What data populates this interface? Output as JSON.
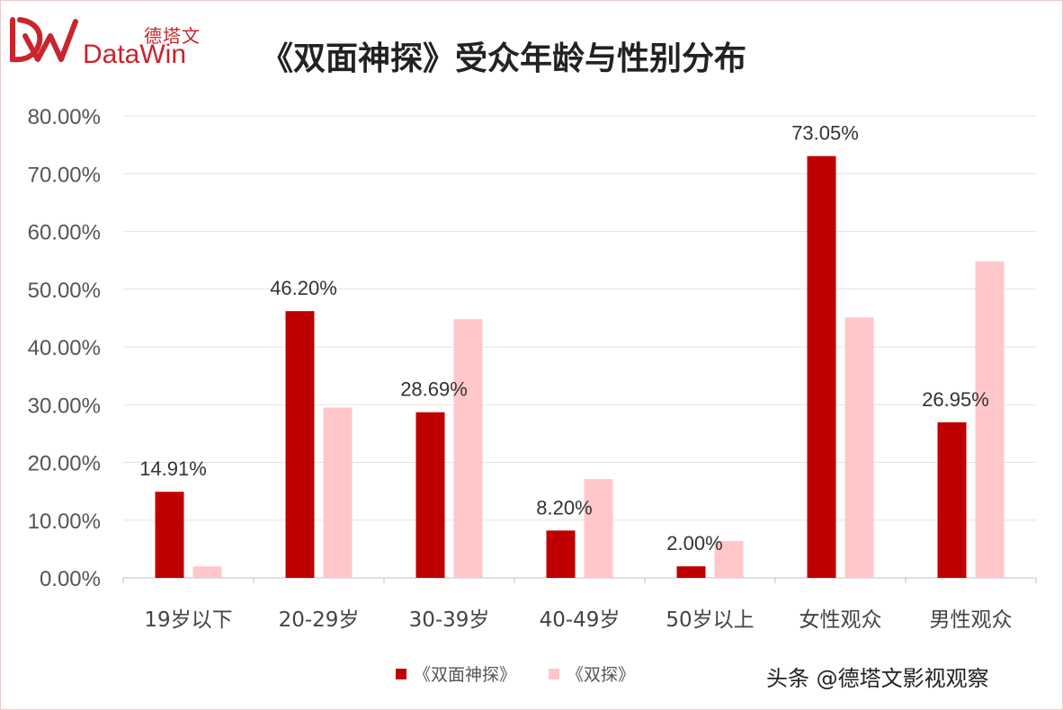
{
  "brand": {
    "logo_cn": "德塔文",
    "logo_en": "DataWin",
    "logo_mark": "DW-mark-icon"
  },
  "chart_data": {
    "type": "bar",
    "title": "《双面神探》受众年龄与性别分布",
    "categories": [
      "19岁以下",
      "20-29岁",
      "30-39岁",
      "40-49岁",
      "50岁以上",
      "女性观众",
      "男性观众"
    ],
    "series": [
      {
        "name": "《双面神探》",
        "color": "#c00000",
        "values": [
          14.91,
          46.2,
          28.69,
          8.2,
          2.0,
          73.05,
          26.95
        ],
        "labels": [
          "14.91%",
          "46.20%",
          "28.69%",
          "8.20%",
          "2.00%",
          "73.05%",
          "26.95%"
        ]
      },
      {
        "name": "《双探》",
        "color": "#ffc7ca",
        "values": [
          2.0,
          29.5,
          44.8,
          17.1,
          6.4,
          45.1,
          54.8
        ]
      }
    ],
    "yticks": [
      "0.00%",
      "10.00%",
      "20.00%",
      "30.00%",
      "40.00%",
      "50.00%",
      "60.00%",
      "70.00%",
      "80.00%"
    ],
    "ylim": [
      0,
      80
    ],
    "ystep": 10,
    "grid": true,
    "legend_position": "bottom"
  },
  "watermark": "头条 @德塔文影视观察"
}
